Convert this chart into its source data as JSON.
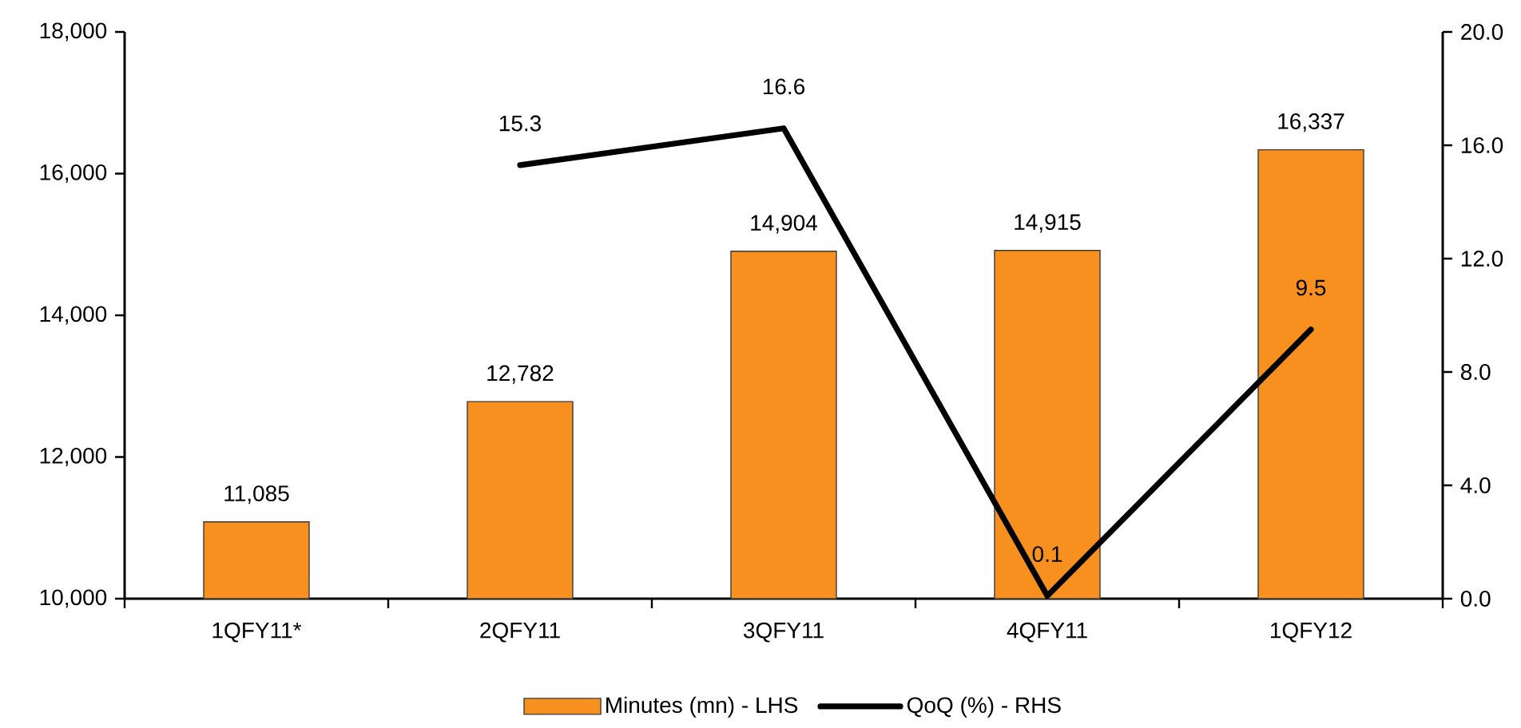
{
  "chart_data": {
    "type": "bar",
    "categories": [
      "1QFY11*",
      "2QFY11",
      "3QFY11",
      "4QFY11",
      "1QFY12"
    ],
    "series": [
      {
        "name": "Minutes (mn) - LHS",
        "color": "#f7901e",
        "values": [
          11085,
          12782,
          14904,
          14915,
          16337
        ],
        "value_labels": [
          "11,085",
          "12,782",
          "14,904",
          "14,915",
          "16,337"
        ]
      },
      {
        "name": "QoQ (%) - RHS",
        "type": "line",
        "axis": "y2",
        "color": "#000000",
        "values": [
          null,
          15.3,
          16.6,
          0.1,
          9.5
        ],
        "value_labels": [
          null,
          "15.3",
          "16.6",
          "0.1",
          "9.5"
        ]
      }
    ],
    "ylim": [
      10000,
      18000
    ],
    "yticks": [
      {
        "value": 10000,
        "label": "10,000"
      },
      {
        "value": 12000,
        "label": "12,000"
      },
      {
        "value": 14000,
        "label": "14,000"
      },
      {
        "value": 16000,
        "label": "16,000"
      },
      {
        "value": 18000,
        "label": "18,000"
      }
    ],
    "y2lim": [
      0,
      20
    ],
    "y2ticks": [
      {
        "value": 0,
        "label": "0.0"
      },
      {
        "value": 4,
        "label": "4.0"
      },
      {
        "value": 8,
        "label": "8.0"
      },
      {
        "value": 12,
        "label": "12.0"
      },
      {
        "value": 16,
        "label": "16.0"
      },
      {
        "value": 20,
        "label": "20.0"
      }
    ],
    "legend": "bottom"
  }
}
